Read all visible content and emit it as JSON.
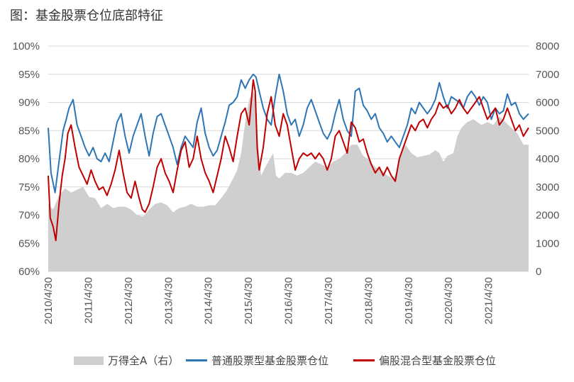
{
  "title": "图：基金股票仓位底部特征",
  "chart_data": {
    "type": "line",
    "left_axis": {
      "ticks": [
        "100%",
        "95%",
        "90%",
        "85%",
        "80%",
        "75%",
        "70%",
        "65%",
        "60%"
      ],
      "ylim": [
        60,
        100
      ]
    },
    "right_axis": {
      "ticks": [
        "8000",
        "7000",
        "6000",
        "5000",
        "4000",
        "3000",
        "2000",
        "1000",
        "0"
      ],
      "ylim": [
        0,
        8000
      ]
    },
    "x_ticks": [
      "2010/4/30",
      "2011/4/30",
      "2012/4/30",
      "2013/4/30",
      "2014/4/30",
      "2015/4/30",
      "2016/4/30",
      "2017/4/30",
      "2018/4/30",
      "2019/4/30",
      "2020/4/30",
      "2021/4/30"
    ],
    "x_range": [
      "2010/4/30",
      "2022/4/30"
    ],
    "grid": "horizontal",
    "legend_position": "bottom",
    "series": [
      {
        "name": "万得全A（右）",
        "kind": "area",
        "axis": "right",
        "color": "#d0cfcf",
        "x": [
          2010.33,
          2010.45,
          2010.6,
          2010.75,
          2010.9,
          2011.05,
          2011.2,
          2011.35,
          2011.5,
          2011.65,
          2011.8,
          2011.95,
          2012.1,
          2012.25,
          2012.4,
          2012.55,
          2012.7,
          2012.85,
          2013.0,
          2013.15,
          2013.3,
          2013.45,
          2013.6,
          2013.75,
          2013.9,
          2014.05,
          2014.2,
          2014.35,
          2014.5,
          2014.65,
          2014.8,
          2014.95,
          2015.05,
          2015.15,
          2015.25,
          2015.35,
          2015.45,
          2015.5,
          2015.55,
          2015.6,
          2015.65,
          2015.75,
          2015.85,
          2015.95,
          2016.02,
          2016.1,
          2016.25,
          2016.4,
          2016.55,
          2016.7,
          2016.85,
          2017.0,
          2017.15,
          2017.3,
          2017.45,
          2017.6,
          2017.75,
          2017.9,
          2018.05,
          2018.2,
          2018.35,
          2018.5,
          2018.65,
          2018.8,
          2018.95,
          2019.05,
          2019.15,
          2019.25,
          2019.4,
          2019.55,
          2019.7,
          2019.85,
          2020.0,
          2020.1,
          2020.2,
          2020.3,
          2020.45,
          2020.55,
          2020.65,
          2020.8,
          2020.95,
          2021.05,
          2021.15,
          2021.3,
          2021.45,
          2021.6,
          2021.75,
          2021.9,
          2022.05,
          2022.2,
          2022.33
        ],
        "values": [
          2400,
          2200,
          2700,
          2950,
          2800,
          2900,
          3000,
          2650,
          2600,
          2250,
          2400,
          2250,
          2300,
          2300,
          2200,
          2000,
          1950,
          2200,
          2400,
          2450,
          2350,
          2100,
          2250,
          2300,
          2400,
          2300,
          2300,
          2350,
          2350,
          2600,
          2900,
          3300,
          3600,
          4200,
          5300,
          6100,
          6400,
          6200,
          5100,
          4000,
          3400,
          3700,
          3950,
          4200,
          3400,
          3300,
          3500,
          3500,
          3400,
          3500,
          3700,
          3900,
          3800,
          3700,
          3900,
          4000,
          4200,
          4500,
          4500,
          4100,
          3950,
          3700,
          3600,
          3400,
          3300,
          3600,
          4200,
          4500,
          4200,
          4050,
          4100,
          4150,
          4300,
          4200,
          3900,
          4100,
          4200,
          4800,
          5100,
          5300,
          5400,
          5300,
          5200,
          5300,
          5200,
          5500,
          5300,
          5100,
          4900,
          4500,
          4500
        ]
      },
      {
        "name": "普通股票型基金股票仓位",
        "kind": "line",
        "axis": "left",
        "color": "#2e75b6",
        "x": [
          2010.33,
          2010.4,
          2010.5,
          2010.6,
          2010.7,
          2010.78,
          2010.85,
          2010.95,
          2011.05,
          2011.15,
          2011.25,
          2011.35,
          2011.45,
          2011.55,
          2011.65,
          2011.75,
          2011.85,
          2011.95,
          2012.05,
          2012.15,
          2012.25,
          2012.35,
          2012.45,
          2012.55,
          2012.65,
          2012.75,
          2012.85,
          2012.95,
          2013.05,
          2013.15,
          2013.25,
          2013.35,
          2013.45,
          2013.55,
          2013.65,
          2013.75,
          2013.85,
          2013.95,
          2014.05,
          2014.15,
          2014.25,
          2014.35,
          2014.45,
          2014.55,
          2014.65,
          2014.75,
          2014.85,
          2014.95,
          2015.05,
          2015.15,
          2015.25,
          2015.35,
          2015.45,
          2015.52,
          2015.6,
          2015.7,
          2015.8,
          2015.9,
          2016.0,
          2016.1,
          2016.2,
          2016.3,
          2016.4,
          2016.5,
          2016.6,
          2016.7,
          2016.8,
          2016.9,
          2017.0,
          2017.1,
          2017.2,
          2017.3,
          2017.4,
          2017.5,
          2017.6,
          2017.7,
          2017.8,
          2017.9,
          2018.0,
          2018.1,
          2018.2,
          2018.3,
          2018.4,
          2018.5,
          2018.6,
          2018.7,
          2018.8,
          2018.9,
          2019.0,
          2019.1,
          2019.2,
          2019.3,
          2019.4,
          2019.5,
          2019.6,
          2019.7,
          2019.8,
          2019.9,
          2020.0,
          2020.1,
          2020.2,
          2020.3,
          2020.4,
          2020.5,
          2020.6,
          2020.7,
          2020.8,
          2020.9,
          2021.0,
          2021.1,
          2021.2,
          2021.3,
          2021.4,
          2021.5,
          2021.6,
          2021.7,
          2021.8,
          2021.9,
          2022.0,
          2022.1,
          2022.2,
          2022.33
        ],
        "values": [
          85.5,
          77.5,
          74,
          79.5,
          85,
          87,
          89,
          90.5,
          86,
          84,
          82,
          80.5,
          82,
          80,
          79.5,
          81,
          79.5,
          83,
          86.5,
          88,
          84,
          81,
          84,
          86,
          88,
          84,
          80.5,
          84.5,
          87.5,
          88,
          86,
          84,
          82,
          79,
          82,
          84,
          83,
          82,
          86.5,
          89,
          84.5,
          82,
          80.5,
          81.5,
          84,
          86.5,
          89.5,
          90,
          91,
          94,
          92.5,
          94,
          95,
          94.5,
          92,
          89,
          87,
          86,
          91,
          95,
          92,
          88,
          86,
          87,
          84,
          86,
          89,
          90.5,
          88.5,
          86.5,
          84.5,
          83.5,
          85,
          88,
          90.5,
          87,
          85,
          84,
          92,
          92.5,
          89.5,
          88.5,
          87,
          88,
          85.5,
          84.5,
          83,
          84,
          83,
          82,
          84,
          86,
          89,
          88,
          90,
          89,
          88,
          89,
          90.5,
          93.5,
          91,
          89,
          91,
          90.5,
          90,
          89,
          91,
          92,
          91,
          89.5,
          91,
          90,
          87,
          89,
          88,
          88.5,
          91.5,
          89.5,
          90,
          88,
          87,
          88
        ]
      },
      {
        "name": "偏股混合型基金股票仓位",
        "kind": "line",
        "axis": "left",
        "color": "#c00000",
        "x": [
          2010.33,
          2010.38,
          2010.45,
          2010.52,
          2010.6,
          2010.68,
          2010.75,
          2010.82,
          2010.9,
          2011.0,
          2011.1,
          2011.2,
          2011.3,
          2011.4,
          2011.5,
          2011.6,
          2011.7,
          2011.8,
          2011.9,
          2012.0,
          2012.1,
          2012.2,
          2012.3,
          2012.4,
          2012.5,
          2012.6,
          2012.68,
          2012.75,
          2012.85,
          2012.95,
          2013.05,
          2013.15,
          2013.25,
          2013.35,
          2013.45,
          2013.55,
          2013.65,
          2013.75,
          2013.85,
          2013.95,
          2014.05,
          2014.15,
          2014.25,
          2014.35,
          2014.45,
          2014.55,
          2014.65,
          2014.75,
          2014.85,
          2014.95,
          2015.05,
          2015.15,
          2015.25,
          2015.35,
          2015.45,
          2015.5,
          2015.55,
          2015.6,
          2015.7,
          2015.8,
          2015.9,
          2016.0,
          2016.1,
          2016.2,
          2016.3,
          2016.4,
          2016.5,
          2016.6,
          2016.7,
          2016.8,
          2016.9,
          2017.0,
          2017.1,
          2017.2,
          2017.3,
          2017.4,
          2017.5,
          2017.6,
          2017.7,
          2017.8,
          2017.9,
          2018.0,
          2018.1,
          2018.2,
          2018.3,
          2018.4,
          2018.5,
          2018.6,
          2018.7,
          2018.8,
          2018.9,
          2019.0,
          2019.1,
          2019.2,
          2019.3,
          2019.4,
          2019.5,
          2019.6,
          2019.7,
          2019.8,
          2019.9,
          2020.0,
          2020.1,
          2020.2,
          2020.3,
          2020.4,
          2020.5,
          2020.6,
          2020.7,
          2020.8,
          2020.9,
          2021.0,
          2021.1,
          2021.2,
          2021.3,
          2021.4,
          2021.5,
          2021.6,
          2021.7,
          2021.8,
          2021.9,
          2022.0,
          2022.1,
          2022.2,
          2022.33
        ],
        "values": [
          77,
          69.5,
          68,
          65.5,
          72,
          77,
          80,
          84.5,
          86,
          82,
          78.5,
          77,
          75.5,
          78,
          76,
          74.5,
          75,
          73.5,
          75.5,
          78,
          81.5,
          77.5,
          74,
          73,
          76,
          73,
          71,
          70.5,
          72,
          75,
          78.5,
          80,
          77.5,
          76,
          74,
          78,
          81.5,
          83,
          78.5,
          80,
          84,
          80,
          77.5,
          76,
          74,
          77,
          80,
          84,
          82,
          79.5,
          84,
          88,
          89,
          86,
          94,
          92,
          82,
          78,
          82,
          88,
          91,
          86,
          84,
          88,
          86,
          82,
          78,
          80,
          81,
          80.5,
          81,
          80,
          81,
          80,
          78,
          80,
          84,
          85,
          83,
          81,
          86.5,
          85.5,
          83,
          83.5,
          81,
          79,
          77.5,
          78.5,
          77,
          78.5,
          77,
          76,
          80,
          82,
          84,
          86,
          85,
          86.5,
          87,
          85.5,
          87,
          88,
          90,
          89,
          89.5,
          88,
          89,
          90.5,
          89,
          88,
          89,
          90,
          91,
          89,
          87,
          88,
          89,
          86,
          87,
          89,
          87,
          85,
          86,
          84,
          85.5
        ]
      }
    ]
  },
  "legend": {
    "area_label": "万得全A（右）",
    "blue_label": "普通股票型基金股票仓位",
    "red_label": "偏股混合型基金股票仓位"
  }
}
